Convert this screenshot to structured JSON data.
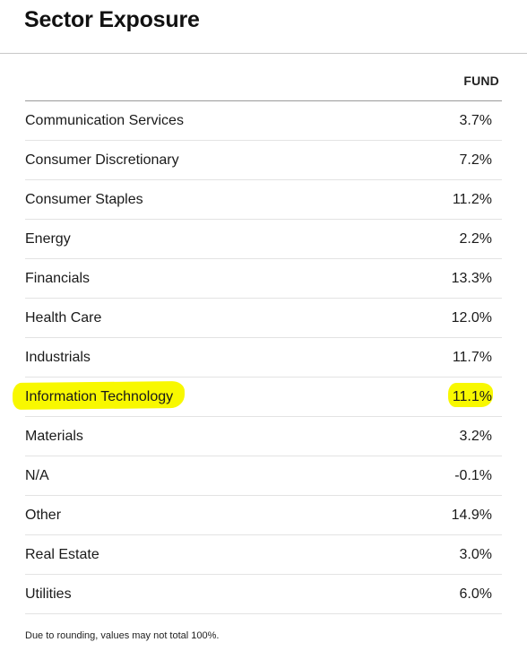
{
  "title": "Sector Exposure",
  "columns": {
    "fund": "FUND"
  },
  "rows": [
    {
      "name": "Communication Services",
      "value": "3.7%"
    },
    {
      "name": "Consumer Discretionary",
      "value": "7.2%"
    },
    {
      "name": "Consumer Staples",
      "value": "11.2%"
    },
    {
      "name": "Energy",
      "value": "2.2%"
    },
    {
      "name": "Financials",
      "value": "13.3%"
    },
    {
      "name": "Health Care",
      "value": "12.0%"
    },
    {
      "name": "Industrials",
      "value": "11.7%"
    },
    {
      "name": "Information Technology",
      "value": "11.1%",
      "highlighted": true
    },
    {
      "name": "Materials",
      "value": "3.2%"
    },
    {
      "name": "N/A",
      "value": "-0.1%"
    },
    {
      "name": "Other",
      "value": "14.9%"
    },
    {
      "name": "Real Estate",
      "value": "3.0%"
    },
    {
      "name": "Utilities",
      "value": "6.0%"
    }
  ],
  "footnote": "Due to rounding, values may not total 100%.",
  "colors": {
    "highlight": "#f8f800"
  }
}
